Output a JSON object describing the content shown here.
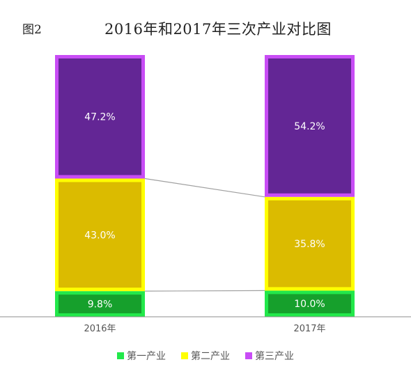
{
  "figure_label": "图2",
  "chart_data": {
    "type": "bar",
    "stacked": true,
    "normalized": true,
    "title": "2016年和2017年三次产业对比图",
    "categories": [
      "2016年",
      "2017年"
    ],
    "series": [
      {
        "name": "第一产业",
        "values": [
          9.8,
          10.0
        ],
        "labels": [
          "9.8%",
          "10.0%"
        ],
        "fill": "#16a02c",
        "border": "#22e84a"
      },
      {
        "name": "第二产业",
        "values": [
          43.0,
          35.8
        ],
        "labels": [
          "43.0%",
          "35.8%"
        ],
        "fill": "#dbbb00",
        "border": "#ffff00"
      },
      {
        "name": "第三产业",
        "values": [
          47.2,
          54.2
        ],
        "labels": [
          "47.2%",
          "54.2%"
        ],
        "fill": "#632695",
        "border": "#c84cf5"
      }
    ],
    "ylim": [
      0,
      100
    ],
    "connector_color": "#a0a0a0",
    "legend_position": "bottom"
  }
}
